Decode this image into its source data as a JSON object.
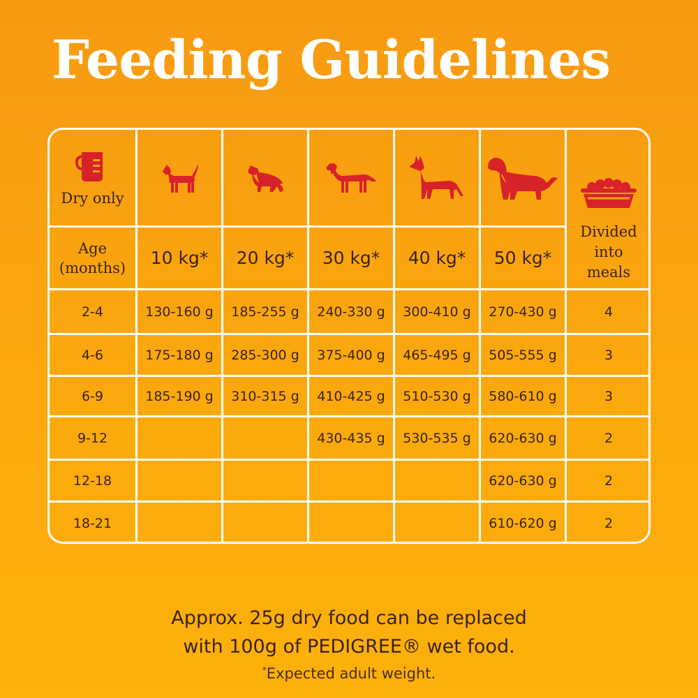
{
  "title": "Feeding Guidelines",
  "colors": {
    "background": "#f79a12",
    "icon_red": "#d8222a",
    "grid": "#ffffff",
    "text": "#3a2214"
  },
  "table": {
    "dry_only_icon": "measuring-cup-icon",
    "dry_only_label": "Dry only",
    "age_label_line1": "Age",
    "age_label_line2": "(months)",
    "meals_icon": "food-tray-icon",
    "meals_label_line1": "Divided",
    "meals_label_line2": "into",
    "meals_label_line3": "meals",
    "columns": [
      {
        "icon": "small-dog-icon",
        "weight": "10 kg*"
      },
      {
        "icon": "collie-dog-icon",
        "weight": "20 kg*"
      },
      {
        "icon": "setter-dog-icon",
        "weight": "30 kg*"
      },
      {
        "icon": "shepherd-dog-icon",
        "weight": "40 kg*"
      },
      {
        "icon": "retriever-dog-icon",
        "weight": "50 kg*"
      }
    ],
    "rows": [
      {
        "age": "2-4",
        "amounts": [
          "130-160 g",
          "185-255 g",
          "240-330 g",
          "300-410 g",
          "270-430 g"
        ],
        "meals": "4"
      },
      {
        "age": "4-6",
        "amounts": [
          "175-180 g",
          "285-300 g",
          "375-400 g",
          "465-495 g",
          "505-555 g"
        ],
        "meals": "3"
      },
      {
        "age": "6-9",
        "amounts": [
          "185-190 g",
          "310-315 g",
          "410-425 g",
          "510-530 g",
          "580-610 g"
        ],
        "meals": "3"
      },
      {
        "age": "9-12",
        "amounts": [
          "",
          "",
          "430-435 g",
          "530-535 g",
          "620-630 g"
        ],
        "meals": "2"
      },
      {
        "age": "12-18",
        "amounts": [
          "",
          "",
          "",
          "",
          "620-630 g"
        ],
        "meals": "2"
      },
      {
        "age": "18-21",
        "amounts": [
          "",
          "",
          "",
          "",
          "610-620 g"
        ],
        "meals": "2"
      }
    ]
  },
  "note": {
    "line1": "Approx. 25g dry food can be replaced",
    "line2": "with 100g of PEDIGREE® wet food."
  },
  "footnote": {
    "mark": "*",
    "text": "Expected adult weight."
  }
}
